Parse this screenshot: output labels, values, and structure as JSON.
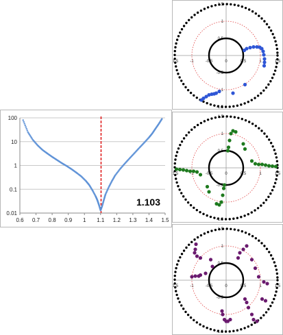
{
  "chart_data": [
    {
      "type": "scatter",
      "title": "",
      "xlabel": "",
      "ylabel": "",
      "xlim": [
        0.6,
        1.5
      ],
      "ylim": [
        0.01,
        100
      ],
      "yscale": "log",
      "x_ticks": [
        "0.6",
        "0.7",
        "0.8",
        "0.9",
        "1",
        "1.1",
        "1.2",
        "1.3",
        "1.4",
        "1.5"
      ],
      "y_ticks": [
        "0.01",
        "0.1",
        "1",
        "10",
        "100"
      ],
      "grid": "horizontal",
      "legend": "none",
      "annotation": "1.103",
      "vertical_line": {
        "x": 1.103,
        "color": "#e02020",
        "style": "dashed"
      },
      "series": [
        {
          "color": "#5b8fd6",
          "x": [
            0.62,
            0.65,
            0.68,
            0.71,
            0.74,
            0.77,
            0.8,
            0.83,
            0.86,
            0.89,
            0.92,
            0.95,
            0.98,
            1.01,
            1.03,
            1.05,
            1.07,
            1.08,
            1.09,
            1.1,
            1.11,
            1.12,
            1.13,
            1.15,
            1.17,
            1.19,
            1.22,
            1.25,
            1.28,
            1.31,
            1.34,
            1.37,
            1.4,
            1.42,
            1.44,
            1.46,
            1.48
          ],
          "y": [
            80,
            25,
            12,
            7,
            4.5,
            3.2,
            2.3,
            1.7,
            1.25,
            0.95,
            0.7,
            0.5,
            0.35,
            0.22,
            0.15,
            0.09,
            0.05,
            0.035,
            0.022,
            0.013,
            0.02,
            0.035,
            0.06,
            0.12,
            0.22,
            0.38,
            0.7,
            1.2,
            2.0,
            3.3,
            5.5,
            9,
            15,
            22,
            35,
            55,
            90
          ]
        }
      ]
    },
    {
      "type": "scatter",
      "xlim": [
        -1.5,
        1.5
      ],
      "ylim": [
        -1.5,
        1.5
      ],
      "x_ticks": [
        "-1.5",
        "-1",
        "-0.5",
        "0",
        "0.5",
        "1",
        "1.5"
      ],
      "y_ticks": [
        "-1.5",
        "-1",
        "-0.5",
        "0",
        "0.5",
        "1",
        "1.5"
      ],
      "grid": "none",
      "legend": "none",
      "circles": [
        {
          "r": 1.5,
          "color": "#000000",
          "style": "dotted-heavy"
        },
        {
          "r": 1.0,
          "color": "#e04040",
          "style": "dotted"
        },
        {
          "r": 0.5,
          "color": "#000000",
          "style": "solid"
        }
      ],
      "series": [
        {
          "color": "#2f56d6",
          "x": [
            0.53,
            0.6,
            0.7,
            0.8,
            0.9,
            0.98,
            1.04,
            1.08,
            1.1,
            1.12,
            1.12,
            1.11,
            -0.29,
            -0.35,
            -0.42,
            -0.5,
            -0.58,
            -0.66,
            -0.72,
            -0.2,
            0.2,
            0.55
          ],
          "y": [
            0.15,
            0.2,
            0.23,
            0.25,
            0.25,
            0.24,
            0.2,
            0.12,
            0.02,
            -0.1,
            -0.2,
            -0.3,
            -1.1,
            -1.12,
            -1.13,
            -1.15,
            -1.2,
            -1.25,
            -1.3,
            -1.05,
            -1.1,
            -0.85
          ]
        }
      ]
    },
    {
      "type": "scatter",
      "xlim": [
        -1.5,
        1.5
      ],
      "ylim": [
        -1.5,
        1.5
      ],
      "x_ticks": [
        "-1.5",
        "-1",
        "-0.5",
        "0",
        "0.5",
        "1",
        "1.5"
      ],
      "y_ticks": [
        "-1.5",
        "-1",
        "-0.5",
        "0",
        "0.5",
        "1",
        "1.5"
      ],
      "grid": "none",
      "legend": "none",
      "circles": [
        {
          "r": 1.5,
          "color": "#000000",
          "style": "dotted-heavy"
        },
        {
          "r": 1.0,
          "color": "#e04040",
          "style": "dotted"
        },
        {
          "r": 0.5,
          "color": "#000000",
          "style": "solid"
        }
      ],
      "series": [
        {
          "color": "#1e7a1e",
          "x": [
            0.05,
            0.07,
            0.1,
            0.14,
            0.2,
            0.28,
            0.5,
            0.75,
            0.85,
            0.95,
            1.05,
            1.15,
            1.25,
            1.35,
            1.45,
            0.55,
            -0.05,
            -0.07,
            -0.1,
            -0.14,
            -0.2,
            -0.28,
            -0.5,
            -0.75,
            -0.85,
            -0.95,
            -1.05,
            -1.15,
            -1.25,
            -1.35,
            -1.45,
            -0.55
          ],
          "y": [
            0.5,
            0.6,
            0.8,
            1.0,
            1.08,
            1.05,
            0.7,
            0.2,
            0.12,
            0.1,
            0.1,
            0.08,
            0.06,
            0.05,
            0.04,
            0.55,
            -0.5,
            -0.6,
            -0.8,
            -1.0,
            -1.08,
            -1.05,
            -0.7,
            -0.2,
            -0.12,
            -0.1,
            -0.1,
            -0.08,
            -0.06,
            -0.05,
            -0.04,
            -0.55
          ]
        }
      ]
    },
    {
      "type": "scatter",
      "xlim": [
        -1.5,
        1.5
      ],
      "ylim": [
        -1.5,
        1.5
      ],
      "x_ticks": [
        "-1.5",
        "-1",
        "-0.5",
        "0",
        "0.5",
        "1",
        "1.5"
      ],
      "y_ticks": [
        "-1.5",
        "-1",
        "-0.5",
        "0",
        "0.5",
        "1",
        "1.5"
      ],
      "grid": "none",
      "legend": "none",
      "circles": [
        {
          "r": 1.5,
          "color": "#000000",
          "style": "dotted-heavy"
        },
        {
          "r": 1.0,
          "color": "#e04040",
          "style": "dotted"
        },
        {
          "r": 0.5,
          "color": "#000000",
          "style": "solid"
        }
      ],
      "series": [
        {
          "color": "#6a1a6e",
          "x": [
            -0.88,
            -0.9,
            -0.92,
            -0.85,
            -0.75,
            -0.45,
            -0.4,
            -0.6,
            -0.75,
            -0.8,
            -0.9,
            -1.0,
            -0.12,
            -0.1,
            -0.05,
            0.0,
            0.05,
            0.12,
            0.35,
            0.4,
            0.5,
            0.6,
            0.75,
            0.85,
            0.95,
            1.1,
            1.2,
            0.55,
            0.6,
            0.65,
            0.75,
            0.8,
            0.9,
            1.05,
            1.15
          ],
          "y": [
            1.05,
            0.9,
            0.8,
            0.7,
            0.65,
            0.6,
            0.4,
            0.2,
            0.15,
            0.12,
            0.12,
            0.1,
            -0.9,
            -1.0,
            -1.15,
            -1.2,
            -1.2,
            -1.15,
            0.65,
            0.8,
            0.9,
            1.0,
            0.6,
            0.35,
            0.1,
            -0.05,
            -0.1,
            -0.55,
            -0.65,
            -0.8,
            -1.0,
            -1.15,
            -1.2,
            -0.55,
            -0.6
          ]
        }
      ]
    }
  ]
}
